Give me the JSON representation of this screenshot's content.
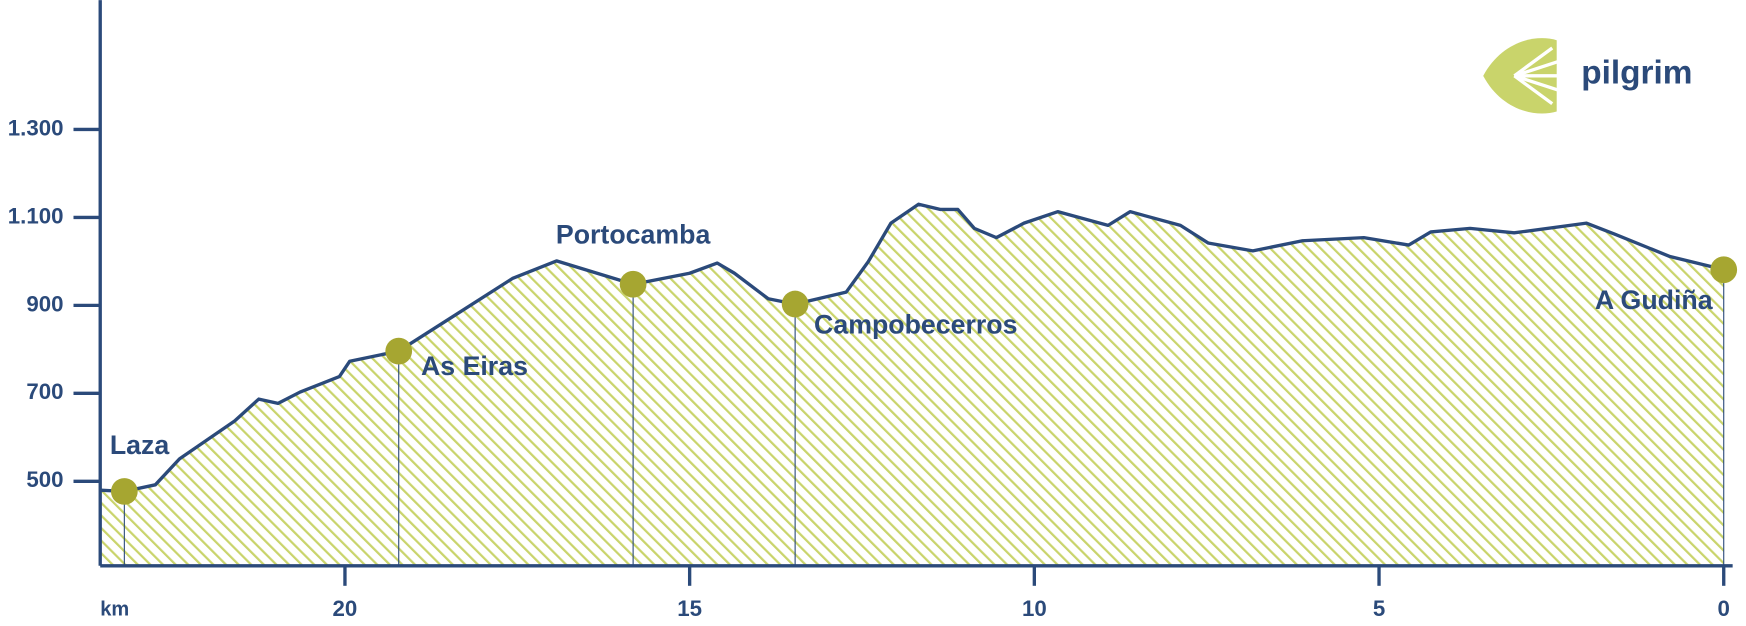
{
  "chart_data": {
    "type": "area",
    "brand": "pilgrim",
    "xlabel": "km",
    "x": [
      23.55,
      23.2,
      22.75,
      22.4,
      21.6,
      21.25,
      20.97,
      20.65,
      20.08,
      19.93,
      19.22,
      18.46,
      17.57,
      16.93,
      15.82,
      15.0,
      14.6,
      14.35,
      13.86,
      13.47,
      12.73,
      12.41,
      12.08,
      11.68,
      11.36,
      11.11,
      10.87,
      10.55,
      10.15,
      9.66,
      8.93,
      8.61,
      7.88,
      7.48,
      6.83,
      6.11,
      5.22,
      4.57,
      4.25,
      3.68,
      3.04,
      1.99,
      1.58,
      0.78,
      0
    ],
    "values": [
      480,
      477,
      492,
      551,
      637,
      687,
      677,
      703,
      738,
      773,
      796,
      872,
      961,
      1001,
      948,
      973,
      996,
      973,
      915,
      903,
      930,
      999,
      1087,
      1130,
      1118,
      1118,
      1075,
      1054,
      1087,
      1113,
      1082,
      1113,
      1082,
      1042,
      1024,
      1047,
      1054,
      1037,
      1067,
      1075,
      1065,
      1087,
      1062,
      1011,
      981
    ],
    "color": "#2b4a7a",
    "fill_color": "#c9d46b",
    "marker_color": "#a6a631",
    "points": [
      {
        "label": "Laza",
        "x": 23.2,
        "y": 477
      },
      {
        "label": "As Eiras",
        "x": 19.22,
        "y": 796
      },
      {
        "label": "Portocamba",
        "x": 15.82,
        "y": 948
      },
      {
        "label": "Campobecerros",
        "x": 13.47,
        "y": 903
      },
      {
        "label": "A Gudiña",
        "x": 0,
        "y": 981
      }
    ],
    "xlim": [
      23.55,
      0
    ],
    "xticks": [
      20,
      15,
      10,
      5,
      0
    ],
    "ylim": [
      308,
      1594
    ],
    "yticks": [
      500,
      700,
      900,
      {
        "value": 1100,
        "label": "1.100"
      },
      {
        "value": 1300,
        "label": "1.300"
      }
    ]
  }
}
